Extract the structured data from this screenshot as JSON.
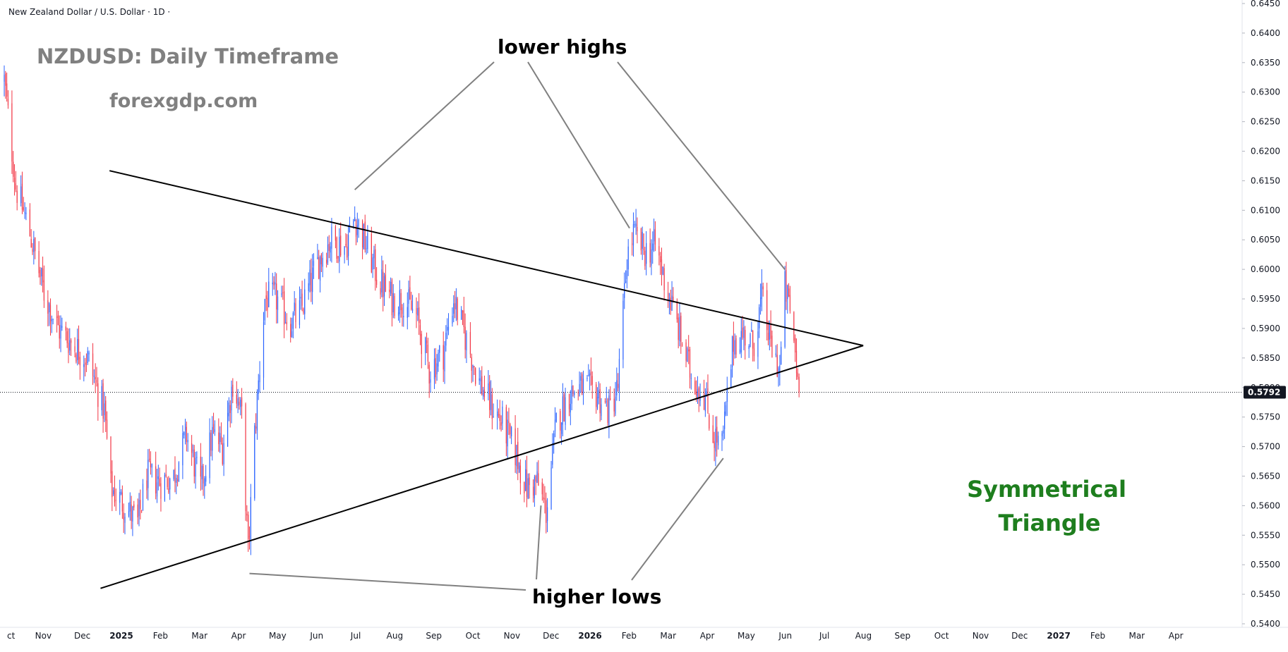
{
  "header": {
    "symbol_line": "New Zealand Dollar / U.S. Dollar · 1D ·"
  },
  "overlay": {
    "title": "NZDUSD: Daily Timeframe",
    "site": "forexgdp.com",
    "label_lower_highs": "lower highs",
    "label_higher_lows": "higher lows",
    "label_pattern_line1": "Symmetrical",
    "label_pattern_line2": "Triangle",
    "colors": {
      "title": "#808080",
      "pattern": "#1e7e1e",
      "up": "#2962ff",
      "down": "#f23645",
      "trend": "#000000",
      "pointer": "#808080"
    }
  },
  "chart_data": {
    "type": "candlestick",
    "title": "NZDUSD: Daily Timeframe",
    "timeframe": "1D",
    "y_ticks": [
      "0.6450",
      "0.6400",
      "0.6350",
      "0.6300",
      "0.6250",
      "0.6200",
      "0.6150",
      "0.6100",
      "0.6050",
      "0.6000",
      "0.5950",
      "0.5900",
      "0.5850",
      "0.5800",
      "0.5750",
      "0.5700",
      "0.5650",
      "0.5600",
      "0.5550",
      "0.5500",
      "0.5450",
      "0.5400"
    ],
    "ylim": [
      0.54,
      0.645
    ],
    "x_ticks": [
      "ct",
      "Nov",
      "Dec",
      "2025",
      "Feb",
      "Mar",
      "Apr",
      "May",
      "Jun",
      "Jul",
      "Aug",
      "Sep",
      "Oct",
      "Nov",
      "Dec",
      "2026",
      "Feb",
      "Mar",
      "Apr",
      "May",
      "Jun",
      "Jul",
      "Aug",
      "Sep",
      "Oct",
      "Nov",
      "Dec",
      "2027",
      "Feb",
      "Mar",
      "Apr"
    ],
    "x_range": [
      "2024-10-01",
      "2027-04-30"
    ],
    "last_price": "0.5792",
    "path": [
      [
        "2024-10-01",
        0.632
      ],
      [
        "2024-10-10",
        0.614
      ],
      [
        "2024-10-20",
        0.607
      ],
      [
        "2024-11-01",
        0.596
      ],
      [
        "2024-11-12",
        0.59
      ],
      [
        "2024-11-25",
        0.587
      ],
      [
        "2024-12-05",
        0.585
      ],
      [
        "2024-12-18",
        0.576
      ],
      [
        "2024-12-23",
        0.563
      ],
      [
        "2025-01-03",
        0.56
      ],
      [
        "2025-01-13",
        0.557
      ],
      [
        "2025-01-20",
        0.565
      ],
      [
        "2025-01-31",
        0.564
      ],
      [
        "2025-02-10",
        0.565
      ],
      [
        "2025-02-20",
        0.572
      ],
      [
        "2025-03-03",
        0.563
      ],
      [
        "2025-03-12",
        0.572
      ],
      [
        "2025-03-20",
        0.57
      ],
      [
        "2025-03-28",
        0.581
      ],
      [
        "2025-04-04",
        0.575
      ],
      [
        "2025-04-09",
        0.552
      ],
      [
        "2025-04-14",
        0.572
      ],
      [
        "2025-04-22",
        0.595
      ],
      [
        "2025-05-01",
        0.595
      ],
      [
        "2025-05-12",
        0.591
      ],
      [
        "2025-05-20",
        0.593
      ],
      [
        "2025-06-02",
        0.601
      ],
      [
        "2025-06-12",
        0.605
      ],
      [
        "2025-06-24",
        0.604
      ],
      [
        "2025-07-01",
        0.609
      ],
      [
        "2025-07-10",
        0.604
      ],
      [
        "2025-07-20",
        0.598
      ],
      [
        "2025-07-30",
        0.595
      ],
      [
        "2025-08-08",
        0.595
      ],
      [
        "2025-08-18",
        0.592
      ],
      [
        "2025-08-28",
        0.583
      ],
      [
        "2025-09-08",
        0.586
      ],
      [
        "2025-09-16",
        0.595
      ],
      [
        "2025-09-26",
        0.588
      ],
      [
        "2025-10-06",
        0.581
      ],
      [
        "2025-10-15",
        0.577
      ],
      [
        "2025-10-24",
        0.574
      ],
      [
        "2025-11-03",
        0.569
      ],
      [
        "2025-11-12",
        0.563
      ],
      [
        "2025-11-20",
        0.564
      ],
      [
        "2025-11-27",
        0.559
      ],
      [
        "2025-12-05",
        0.574
      ],
      [
        "2025-12-15",
        0.579
      ],
      [
        "2025-12-25",
        0.58
      ],
      [
        "2026-01-05",
        0.579
      ],
      [
        "2026-01-15",
        0.576
      ],
      [
        "2026-01-22",
        0.58
      ],
      [
        "2026-01-29",
        0.602
      ],
      [
        "2026-02-03",
        0.606
      ],
      [
        "2026-02-12",
        0.603
      ],
      [
        "2026-02-20",
        0.604
      ],
      [
        "2026-03-02",
        0.596
      ],
      [
        "2026-03-10",
        0.59
      ],
      [
        "2026-03-20",
        0.582
      ],
      [
        "2026-03-30",
        0.579
      ],
      [
        "2026-04-06",
        0.572
      ],
      [
        "2026-04-13",
        0.57
      ],
      [
        "2026-04-22",
        0.588
      ],
      [
        "2026-05-01",
        0.589
      ],
      [
        "2026-05-07",
        0.587
      ],
      [
        "2026-05-14",
        0.595
      ],
      [
        "2026-05-21",
        0.587
      ],
      [
        "2026-05-28",
        0.583
      ],
      [
        "2026-06-01",
        0.597
      ],
      [
        "2026-06-05",
        0.593
      ],
      [
        "2026-06-09",
        0.586
      ],
      [
        "2026-06-12",
        0.5792
      ]
    ],
    "trendlines": [
      {
        "name": "upper",
        "points": [
          [
            "2024-12-22",
            0.6167
          ],
          [
            "2026-08-01",
            0.5871
          ]
        ]
      },
      {
        "name": "lower",
        "points": [
          [
            "2024-12-15",
            0.546
          ],
          [
            "2026-08-01",
            0.5871
          ]
        ]
      }
    ],
    "annotations": [
      {
        "text": "lower highs",
        "points": [
          [
            "2025-07-01",
            0.613
          ],
          [
            "2026-01-31",
            0.6065
          ],
          [
            "2026-06-01",
            0.5995
          ]
        ]
      },
      {
        "text": "higher lows",
        "points": [
          [
            "2025-04-10",
            0.549
          ],
          [
            "2025-11-23",
            0.5605
          ],
          [
            "2026-04-14",
            0.5685
          ]
        ]
      },
      {
        "text": "Symmetrical Triangle"
      }
    ]
  }
}
